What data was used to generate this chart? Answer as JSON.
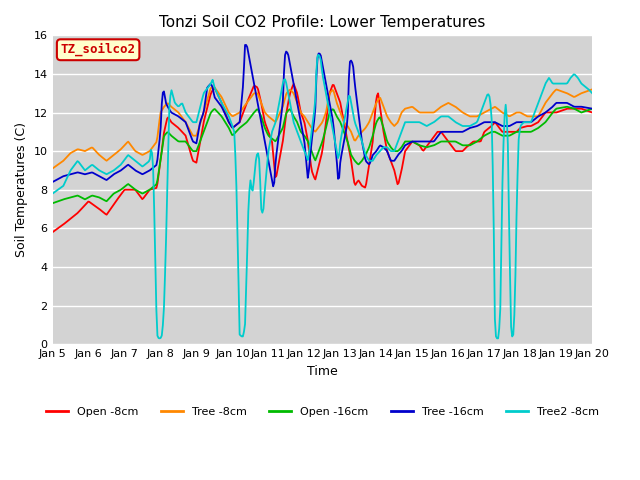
{
  "title": "Tonzi Soil CO2 Profile: Lower Temperatures",
  "xlabel": "Time",
  "ylabel": "Soil Temperatures (C)",
  "ylim": [
    0,
    16
  ],
  "plot_bg_color": "#d3d3d3",
  "label_box_text": "TZ_soilco2",
  "label_box_bg": "#ffffcc",
  "label_box_edge": "#cc0000",
  "xtick_labels": [
    "Jan 5",
    "Jan 6",
    "Jan 7",
    "Jan 8",
    "Jan 9",
    "Jan 10",
    "Jan 11",
    "Jan 12",
    "Jan 13",
    "Jan 14",
    "Jan 15",
    "Jan 16",
    "Jan 17",
    "Jan 18",
    "Jan 19",
    "Jan 20"
  ],
  "legend_entries": [
    "Open -8cm",
    "Tree -8cm",
    "Open -16cm",
    "Tree -16cm",
    "Tree2 -8cm"
  ],
  "legend_colors": [
    "#ff0000",
    "#ff8800",
    "#00bb00",
    "#0000cc",
    "#00cccc"
  ],
  "line_width": 1.3
}
